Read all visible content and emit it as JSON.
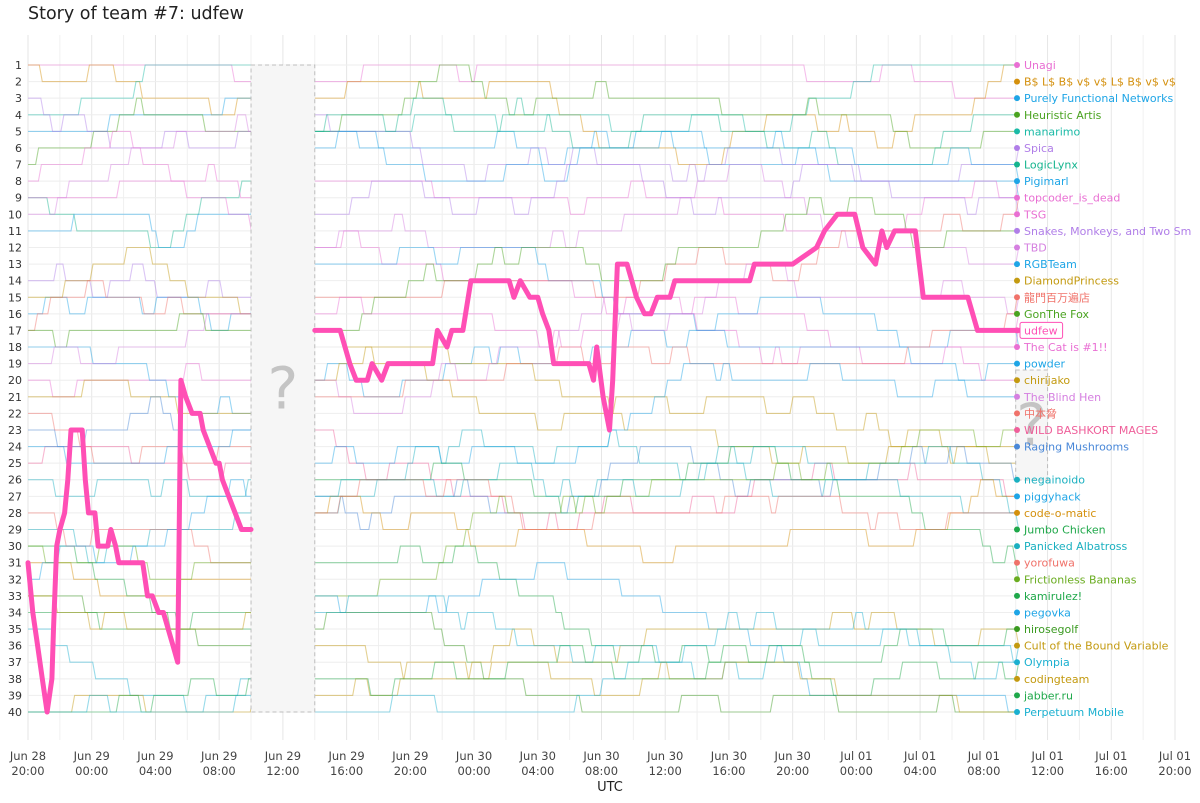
{
  "chart_data": {
    "type": "line",
    "title": "Story of team #7: udfew",
    "xlabel": "UTC",
    "ylabel": "",
    "ranks": [
      1,
      2,
      3,
      4,
      5,
      6,
      7,
      8,
      9,
      10,
      11,
      12,
      13,
      14,
      15,
      16,
      17,
      18,
      19,
      20,
      21,
      22,
      23,
      24,
      25,
      26,
      27,
      28,
      29,
      30,
      31,
      32,
      33,
      34,
      35,
      36,
      37,
      38,
      39,
      40
    ],
    "x_ticks": [
      {
        "hours": 0,
        "date": "Jun 28",
        "time": "20:00"
      },
      {
        "hours": 4,
        "date": "Jun 29",
        "time": "00:00"
      },
      {
        "hours": 8,
        "date": "Jun 29",
        "time": "04:00"
      },
      {
        "hours": 12,
        "date": "Jun 29",
        "time": "08:00"
      },
      {
        "hours": 16,
        "date": "Jun 29",
        "time": "12:00"
      },
      {
        "hours": 20,
        "date": "Jun 29",
        "time": "16:00"
      },
      {
        "hours": 24,
        "date": "Jun 29",
        "time": "20:00"
      },
      {
        "hours": 28,
        "date": "Jun 30",
        "time": "00:00"
      },
      {
        "hours": 32,
        "date": "Jun 30",
        "time": "04:00"
      },
      {
        "hours": 36,
        "date": "Jun 30",
        "time": "08:00"
      },
      {
        "hours": 40,
        "date": "Jun 30",
        "time": "12:00"
      },
      {
        "hours": 44,
        "date": "Jun 30",
        "time": "16:00"
      },
      {
        "hours": 48,
        "date": "Jun 30",
        "time": "20:00"
      },
      {
        "hours": 52,
        "date": "Jul 01",
        "time": "00:00"
      },
      {
        "hours": 56,
        "date": "Jul 01",
        "time": "04:00"
      },
      {
        "hours": 60,
        "date": "Jul 01",
        "time": "08:00"
      },
      {
        "hours": 64,
        "date": "Jul 01",
        "time": "12:00"
      },
      {
        "hours": 68,
        "date": "Jul 01",
        "time": "16:00"
      },
      {
        "hours": 72,
        "date": "Jul 01",
        "time": "20:00"
      }
    ],
    "x_range_hours": [
      0,
      72
    ],
    "unknown_periods": [
      {
        "from_hours": 14.0,
        "to_hours": 18.0,
        "label": "?"
      },
      {
        "from_hours": 62.0,
        "to_hours": 64.0,
        "label": "?"
      }
    ],
    "final_standings": [
      {
        "rank": 1,
        "team": "Unagi",
        "color": "#e96fd3"
      },
      {
        "rank": 2,
        "team": "B$ L$ B$ v$ v$ L$ B$ v$ v$",
        "color": "#d4900d"
      },
      {
        "rank": 3,
        "team": "Purely Functional Networks",
        "color": "#1ea5e6"
      },
      {
        "rank": 4,
        "team": "Heuristic Artis",
        "color": "#4aa320"
      },
      {
        "rank": 5,
        "team": "manarimo",
        "color": "#1abaa6"
      },
      {
        "rank": 6,
        "team": "Spica",
        "color": "#b07ee8"
      },
      {
        "rank": 7,
        "team": "LogicLynx",
        "color": "#14b48e"
      },
      {
        "rank": 8,
        "team": "Pigimarl",
        "color": "#1ea5e6"
      },
      {
        "rank": 9,
        "team": "topcoder_is_dead",
        "color": "#e96fd3"
      },
      {
        "rank": 10,
        "team": "TSG",
        "color": "#e96fd3"
      },
      {
        "rank": 11,
        "team": "Snakes, Monkeys, and Two Sm",
        "color": "#b07ee8"
      },
      {
        "rank": 12,
        "team": "TBD",
        "color": "#d57fe0"
      },
      {
        "rank": 13,
        "team": "RGBTeam",
        "color": "#1ea5e6"
      },
      {
        "rank": 14,
        "team": "DiamondPrincess",
        "color": "#c39a10"
      },
      {
        "rank": 15,
        "team": "龍門百万遍店",
        "color": "#f0726a"
      },
      {
        "rank": 16,
        "team": "GonThe Fox",
        "color": "#4aa320"
      },
      {
        "rank": 17,
        "team": "udfew",
        "color": "#ff4fb5"
      },
      {
        "rank": 18,
        "team": "The Cat is #1!!",
        "color": "#e96fd3"
      },
      {
        "rank": 19,
        "team": "powder",
        "color": "#1ea5e6"
      },
      {
        "rank": 20,
        "team": "chirijako",
        "color": "#c39a10"
      },
      {
        "rank": 21,
        "team": "The Blind Hen",
        "color": "#d57fe0"
      },
      {
        "rank": 22,
        "team": "中本脅",
        "color": "#f0726a"
      },
      {
        "rank": 23,
        "team": "WILD BASHKORT MAGES",
        "color": "#ef5f9a"
      },
      {
        "rank": 24,
        "team": "Raging Mushrooms",
        "color": "#4a88d8"
      },
      {
        "rank": 26,
        "team": "negainoido",
        "color": "#1ab0c0"
      },
      {
        "rank": 27,
        "team": "piggyhack",
        "color": "#1ea5e6"
      },
      {
        "rank": 28,
        "team": "code-o-matic",
        "color": "#d4900d"
      },
      {
        "rank": 29,
        "team": "Jumbo Chicken",
        "color": "#1fa84a"
      },
      {
        "rank": 30,
        "team": "Panicked Albatross",
        "color": "#1ab0c0"
      },
      {
        "rank": 31,
        "team": "yorofuwa",
        "color": "#f0726a"
      },
      {
        "rank": 32,
        "team": "Frictionless Bananas",
        "color": "#6aac20"
      },
      {
        "rank": 33,
        "team": "kamirulez!",
        "color": "#1fa84a"
      },
      {
        "rank": 34,
        "team": "pegovka",
        "color": "#1ea5e6"
      },
      {
        "rank": 35,
        "team": "hirosegolf",
        "color": "#3a9a20"
      },
      {
        "rank": 36,
        "team": "Cult of the Bound Variable",
        "color": "#c39a10"
      },
      {
        "rank": 37,
        "team": "Olympia",
        "color": "#1ab0d0"
      },
      {
        "rank": 38,
        "team": "codingteam",
        "color": "#c39a10"
      },
      {
        "rank": 39,
        "team": "jabber.ru",
        "color": "#1fa84a"
      },
      {
        "rank": 40,
        "team": "Perpetuum Mobile",
        "color": "#1ab0d0"
      }
    ],
    "highlight_team": "udfew",
    "series": [
      {
        "name": "udfew",
        "color": "#ff4fb5",
        "points": [
          [
            0.0,
            31
          ],
          [
            0.3,
            34
          ],
          [
            0.6,
            36
          ],
          [
            0.9,
            38
          ],
          [
            1.2,
            40
          ],
          [
            1.5,
            38
          ],
          [
            1.6,
            35
          ],
          [
            1.8,
            30
          ],
          [
            2.0,
            29
          ],
          [
            2.3,
            28
          ],
          [
            2.5,
            26
          ],
          [
            2.7,
            23
          ],
          [
            3.0,
            23
          ],
          [
            3.4,
            23
          ],
          [
            3.6,
            26
          ],
          [
            3.8,
            28
          ],
          [
            4.2,
            28
          ],
          [
            4.4,
            30
          ],
          [
            4.7,
            30
          ],
          [
            5.0,
            30
          ],
          [
            5.2,
            29
          ],
          [
            5.5,
            30
          ],
          [
            5.7,
            31
          ],
          [
            6.0,
            31
          ],
          [
            6.8,
            31
          ],
          [
            7.2,
            31
          ],
          [
            7.5,
            33
          ],
          [
            7.8,
            33
          ],
          [
            8.2,
            34
          ],
          [
            8.5,
            34
          ],
          [
            8.8,
            35
          ],
          [
            9.1,
            36
          ],
          [
            9.4,
            37
          ],
          [
            9.6,
            20
          ],
          [
            9.9,
            21
          ],
          [
            10.3,
            22
          ],
          [
            10.8,
            22
          ],
          [
            11.0,
            23
          ],
          [
            11.4,
            24
          ],
          [
            11.8,
            25
          ],
          [
            12.0,
            25
          ],
          [
            12.2,
            26
          ],
          [
            12.6,
            27
          ],
          [
            13.0,
            28
          ],
          [
            13.4,
            29
          ],
          [
            14.0,
            29
          ],
          [
            18.0,
            17
          ],
          [
            19.6,
            17
          ],
          [
            20.2,
            19
          ],
          [
            20.6,
            20
          ],
          [
            21.3,
            20
          ],
          [
            21.6,
            19
          ],
          [
            22.2,
            20
          ],
          [
            22.6,
            19
          ],
          [
            24.0,
            19
          ],
          [
            25.4,
            19
          ],
          [
            25.7,
            17
          ],
          [
            26.3,
            18
          ],
          [
            26.6,
            17
          ],
          [
            27.3,
            17
          ],
          [
            27.8,
            14
          ],
          [
            30.2,
            14
          ],
          [
            30.5,
            15
          ],
          [
            30.9,
            14
          ],
          [
            31.5,
            15
          ],
          [
            32.0,
            15
          ],
          [
            32.3,
            16
          ],
          [
            32.7,
            17
          ],
          [
            33.0,
            19
          ],
          [
            35.2,
            19
          ],
          [
            35.5,
            20
          ],
          [
            35.7,
            18
          ],
          [
            36.1,
            21
          ],
          [
            36.5,
            23
          ],
          [
            36.7,
            20
          ],
          [
            37.0,
            13
          ],
          [
            37.6,
            13
          ],
          [
            37.9,
            14
          ],
          [
            38.2,
            15
          ],
          [
            38.7,
            16
          ],
          [
            39.1,
            16
          ],
          [
            39.5,
            15
          ],
          [
            39.9,
            15
          ],
          [
            40.3,
            15
          ],
          [
            40.6,
            14
          ],
          [
            42.1,
            14
          ],
          [
            43.0,
            14
          ],
          [
            44.0,
            14
          ],
          [
            45.3,
            14
          ],
          [
            45.6,
            13
          ],
          [
            46.1,
            13
          ],
          [
            48.0,
            13
          ],
          [
            49.5,
            12
          ],
          [
            50.0,
            11
          ],
          [
            50.8,
            10
          ],
          [
            51.9,
            10
          ],
          [
            52.4,
            12
          ],
          [
            53.2,
            13
          ],
          [
            53.6,
            11
          ],
          [
            53.9,
            12
          ],
          [
            54.4,
            11
          ],
          [
            55.7,
            11
          ],
          [
            56.2,
            15
          ],
          [
            56.6,
            15
          ],
          [
            57.2,
            15
          ],
          [
            59.0,
            15
          ],
          [
            59.6,
            17
          ],
          [
            63.0,
            17
          ]
        ]
      }
    ]
  }
}
